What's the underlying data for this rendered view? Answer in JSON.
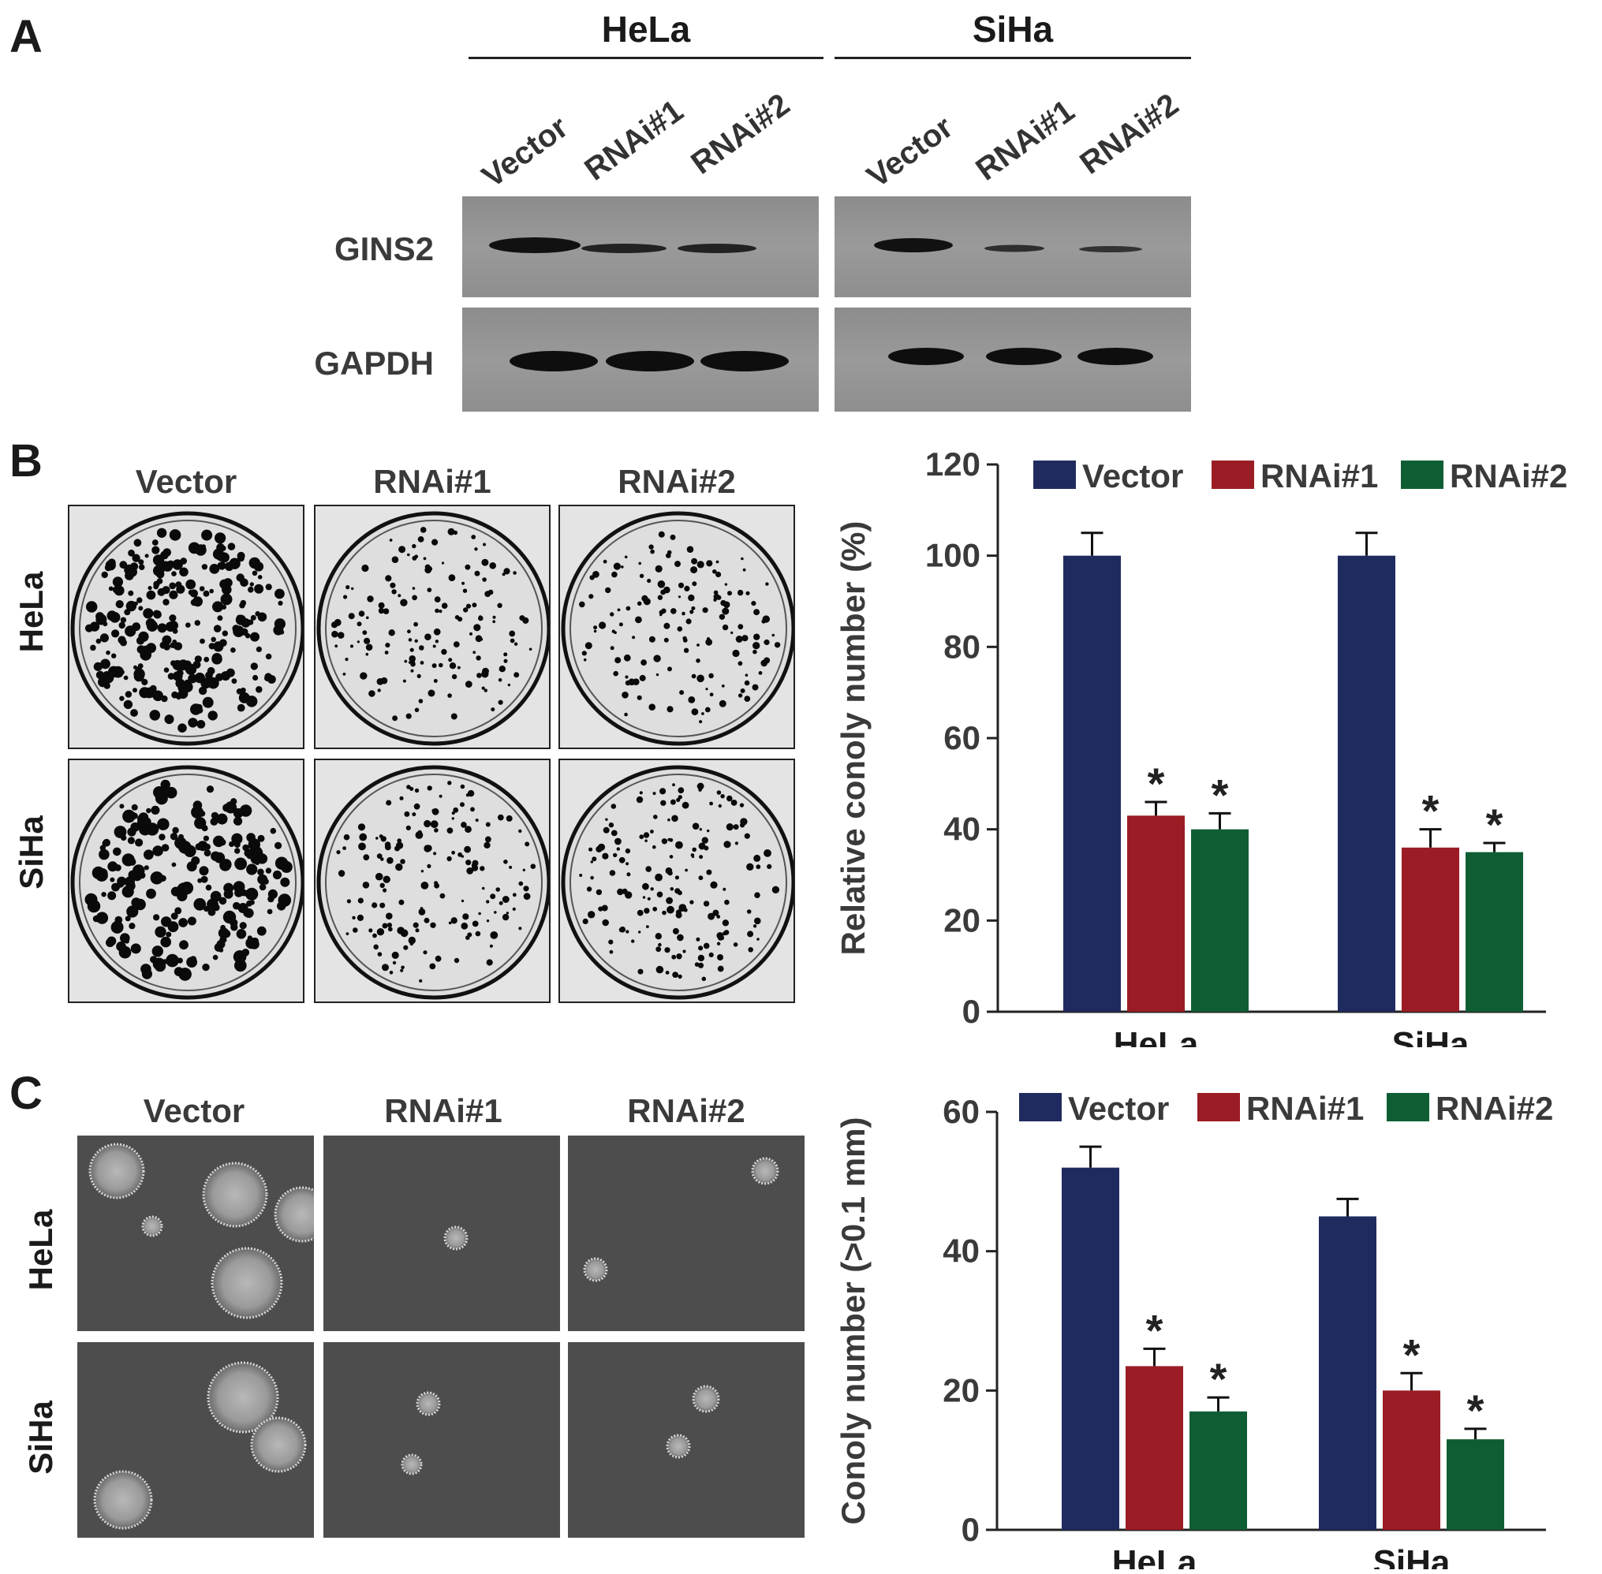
{
  "panels": {
    "a": {
      "letter": "A",
      "groups": [
        "HeLa",
        "SiHa"
      ],
      "lanes": [
        "Vector",
        "RNAi#1",
        "RNAi#2"
      ],
      "blots": [
        "GINS2",
        "GAPDH"
      ],
      "band_intensity": {
        "GINS2": {
          "HeLa": [
            1.0,
            0.55,
            0.5
          ],
          "SiHa": [
            0.95,
            0.4,
            0.35
          ]
        },
        "GAPDH": {
          "HeLa": [
            1.0,
            1.0,
            1.0
          ],
          "SiHa": [
            1.0,
            1.0,
            1.0
          ]
        }
      }
    },
    "b": {
      "letter": "B",
      "col_headers": [
        "Vector",
        "RNAi#1",
        "RNAi#2"
      ],
      "row_labels": [
        "HeLa",
        "SiHa"
      ]
    },
    "c": {
      "letter": "C",
      "col_headers": [
        "Vector",
        "RNAi#1",
        "RNAi#2"
      ],
      "row_labels": [
        "HeLa",
        "SiHa"
      ]
    }
  },
  "colors": {
    "vector": "#1f2b5e",
    "rnai1": "#9b1c24",
    "rnai2": "#0f5e33"
  },
  "chart_data": [
    {
      "type": "bar",
      "categories": [
        "HeLa",
        "SiHa"
      ],
      "series": [
        {
          "name": "Vector",
          "values": [
            100,
            100
          ],
          "errors": [
            5,
            5
          ],
          "significant": [
            false,
            false
          ]
        },
        {
          "name": "RNAi#1",
          "values": [
            43,
            36
          ],
          "errors": [
            3,
            4
          ],
          "significant": [
            true,
            true
          ]
        },
        {
          "name": "RNAi#2",
          "values": [
            40,
            35
          ],
          "errors": [
            3.5,
            2
          ],
          "significant": [
            true,
            true
          ]
        }
      ],
      "ylabel": "Relative conoly number (%)",
      "ylim": [
        0,
        120
      ],
      "yticks": [
        "0",
        "20",
        "40",
        "60",
        "80",
        "100",
        "120"
      ],
      "significance_mark": "*",
      "legend": "top"
    },
    {
      "type": "bar",
      "categories": [
        "HeLa",
        "SiHa"
      ],
      "series": [
        {
          "name": "Vector",
          "values": [
            52,
            45
          ],
          "errors": [
            3,
            2.5
          ],
          "significant": [
            false,
            false
          ]
        },
        {
          "name": "RNAi#1",
          "values": [
            23.5,
            20
          ],
          "errors": [
            2.5,
            2.5
          ],
          "significant": [
            true,
            true
          ]
        },
        {
          "name": "RNAi#2",
          "values": [
            17,
            13
          ],
          "errors": [
            2,
            1.5
          ],
          "significant": [
            true,
            true
          ]
        }
      ],
      "ylabel": "Conoly number (>0.1 mm)",
      "ylim": [
        0,
        60
      ],
      "yticks": [
        "0",
        "20",
        "40",
        "60"
      ],
      "significance_mark": "*",
      "legend": "top"
    }
  ]
}
